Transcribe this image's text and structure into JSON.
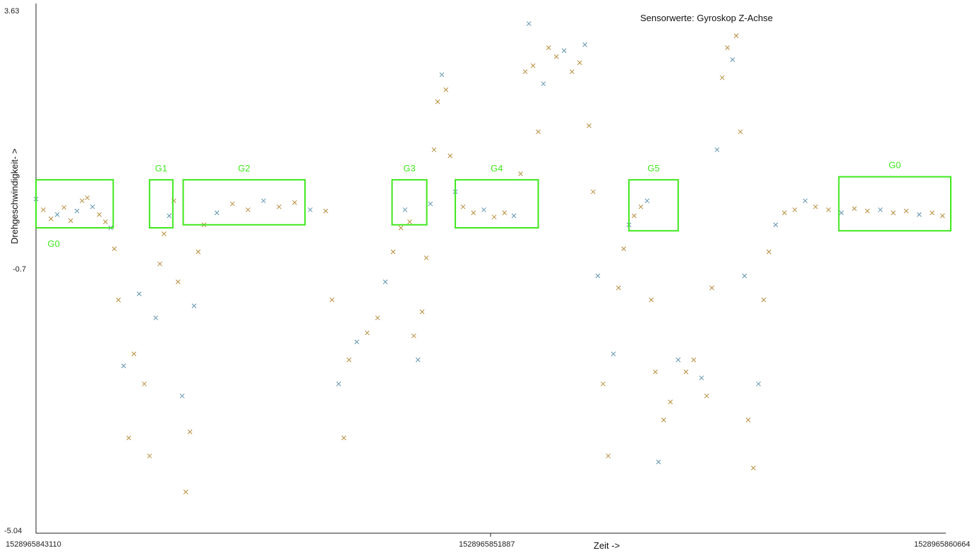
{
  "colors": {
    "box": "#3fe81c",
    "label": "#3fe81c",
    "series_primary": "#b78b3c",
    "series_secondary": "#5f93ad"
  },
  "chart_data": {
    "type": "scatter",
    "title": "Sensorwerte: Gyroskop Z-Achse",
    "xlabel": "Zeit ->",
    "ylabel": "Drehgeschwindigkeit- >",
    "xlim": [
      1528965843110,
      1528965860664
    ],
    "ylim": [
      -5.04,
      3.63
    ],
    "x_ticks": [
      "1528965843110",
      "1528965851887",
      "1528965860664"
    ],
    "y_ticks": [
      "3.63",
      "-0.7",
      "-5.04"
    ],
    "grid": false,
    "marker": "x",
    "points": [
      [
        1528965843110,
        0.48
      ],
      [
        1528965843250,
        0.3
      ],
      [
        1528965843400,
        0.15
      ],
      [
        1528965843520,
        0.22
      ],
      [
        1528965843650,
        0.34
      ],
      [
        1528965843780,
        0.12
      ],
      [
        1528965843900,
        0.28
      ],
      [
        1528965844000,
        0.45
      ],
      [
        1528965844100,
        0.5
      ],
      [
        1528965844200,
        0.35
      ],
      [
        1528965844330,
        0.22
      ],
      [
        1528965844450,
        0.1
      ],
      [
        1528965844550,
        0.0
      ],
      [
        1528965844620,
        -0.35
      ],
      [
        1528965844700,
        -1.2
      ],
      [
        1528965844800,
        -2.3
      ],
      [
        1528965844900,
        -3.5
      ],
      [
        1528965845000,
        -2.1
      ],
      [
        1528965845100,
        -1.1
      ],
      [
        1528965845200,
        -2.6
      ],
      [
        1528965845300,
        -3.8
      ],
      [
        1528965845420,
        -1.5
      ],
      [
        1528965845500,
        -0.6
      ],
      [
        1528965845580,
        -0.1
      ],
      [
        1528965845680,
        0.2
      ],
      [
        1528965845770,
        0.45
      ],
      [
        1528965845850,
        -0.9
      ],
      [
        1528965845930,
        -2.8
      ],
      [
        1528965846000,
        -4.4
      ],
      [
        1528965846080,
        -3.4
      ],
      [
        1528965846160,
        -1.3
      ],
      [
        1528965846240,
        -0.4
      ],
      [
        1528965846350,
        0.05
      ],
      [
        1528965846600,
        0.25
      ],
      [
        1528965846900,
        0.4
      ],
      [
        1528965847200,
        0.3
      ],
      [
        1528965847500,
        0.45
      ],
      [
        1528965847800,
        0.35
      ],
      [
        1528965848100,
        0.42
      ],
      [
        1528965848400,
        0.3
      ],
      [
        1528965848700,
        0.28
      ],
      [
        1528965848820,
        -1.2
      ],
      [
        1528965848950,
        -2.6
      ],
      [
        1528965849050,
        -3.5
      ],
      [
        1528965849150,
        -2.2
      ],
      [
        1528965849300,
        -1.9
      ],
      [
        1528965849500,
        -1.75
      ],
      [
        1528965849700,
        -1.5
      ],
      [
        1528965849850,
        -0.9
      ],
      [
        1528965850000,
        -0.4
      ],
      [
        1528965850150,
        0.0
      ],
      [
        1528965850230,
        0.3
      ],
      [
        1528965850320,
        0.1
      ],
      [
        1528965850400,
        -1.8
      ],
      [
        1528965850480,
        -2.2
      ],
      [
        1528965850560,
        -1.4
      ],
      [
        1528965850640,
        -0.5
      ],
      [
        1528965850720,
        0.4
      ],
      [
        1528965850790,
        1.3
      ],
      [
        1528965850860,
        2.1
      ],
      [
        1528965850940,
        2.55
      ],
      [
        1528965851020,
        2.3
      ],
      [
        1528965851100,
        1.2
      ],
      [
        1528965851200,
        0.6
      ],
      [
        1528965851350,
        0.35
      ],
      [
        1528965851550,
        0.25
      ],
      [
        1528965851750,
        0.3
      ],
      [
        1528965851950,
        0.18
      ],
      [
        1528965852150,
        0.25
      ],
      [
        1528965852330,
        0.2
      ],
      [
        1528965852460,
        0.9
      ],
      [
        1528965852550,
        2.6
      ],
      [
        1528965852620,
        3.4
      ],
      [
        1528965852700,
        2.7
      ],
      [
        1528965852800,
        1.6
      ],
      [
        1528965852900,
        2.4
      ],
      [
        1528965853000,
        3.0
      ],
      [
        1528965853150,
        2.85
      ],
      [
        1528965853300,
        2.95
      ],
      [
        1528965853450,
        2.6
      ],
      [
        1528965853600,
        2.75
      ],
      [
        1528965853700,
        3.05
      ],
      [
        1528965853780,
        1.7
      ],
      [
        1528965853860,
        0.6
      ],
      [
        1528965853950,
        -0.8
      ],
      [
        1528965854050,
        -2.6
      ],
      [
        1528965854150,
        -3.8
      ],
      [
        1528965854250,
        -2.1
      ],
      [
        1528965854350,
        -1.0
      ],
      [
        1528965854450,
        -0.35
      ],
      [
        1528965854550,
        0.05
      ],
      [
        1528965854650,
        0.2
      ],
      [
        1528965854780,
        0.35
      ],
      [
        1528965854900,
        0.45
      ],
      [
        1528965854980,
        -1.2
      ],
      [
        1528965855060,
        -2.4
      ],
      [
        1528965855120,
        -3.9
      ],
      [
        1528965855220,
        -3.2
      ],
      [
        1528965855350,
        -2.9
      ],
      [
        1528965855500,
        -2.2
      ],
      [
        1528965855650,
        -2.4
      ],
      [
        1528965855800,
        -2.2
      ],
      [
        1528965855950,
        -2.5
      ],
      [
        1528965856050,
        -2.8
      ],
      [
        1528965856150,
        -1.0
      ],
      [
        1528965856250,
        1.3
      ],
      [
        1528965856350,
        2.5
      ],
      [
        1528965856450,
        3.0
      ],
      [
        1528965856550,
        2.8
      ],
      [
        1528965856620,
        3.2
      ],
      [
        1528965856700,
        1.6
      ],
      [
        1528965856780,
        -0.8
      ],
      [
        1528965856850,
        -3.2
      ],
      [
        1528965856950,
        -4.0
      ],
      [
        1528965857050,
        -2.6
      ],
      [
        1528965857150,
        -1.2
      ],
      [
        1528965857250,
        -0.4
      ],
      [
        1528965857380,
        0.05
      ],
      [
        1528965857550,
        0.25
      ],
      [
        1528965857750,
        0.3
      ],
      [
        1528965857950,
        0.45
      ],
      [
        1528965858150,
        0.35
      ],
      [
        1528965858400,
        0.3
      ],
      [
        1528965858650,
        0.25
      ],
      [
        1528965858900,
        0.32
      ],
      [
        1528965859150,
        0.28
      ],
      [
        1528965859400,
        0.3
      ],
      [
        1528965859650,
        0.25
      ],
      [
        1528965859900,
        0.28
      ],
      [
        1528965860150,
        0.22
      ],
      [
        1528965860400,
        0.25
      ],
      [
        1528965860600,
        0.2
      ]
    ],
    "annotations": [
      {
        "label": "G0",
        "x_range": [
          1528965843110,
          1528965844600
        ],
        "y_range": [
          0.0,
          0.8
        ]
      },
      {
        "label": "G1",
        "x_range": [
          1528965845300,
          1528965845750
        ],
        "y_range": [
          0.0,
          0.8
        ]
      },
      {
        "label": "G2",
        "x_range": [
          1528965845950,
          1528965848300
        ],
        "y_range": [
          0.05,
          0.8
        ]
      },
      {
        "label": "G3",
        "x_range": [
          1528965849980,
          1528965850650
        ],
        "y_range": [
          0.05,
          0.8
        ]
      },
      {
        "label": "G4",
        "x_range": [
          1528965851200,
          1528965852800
        ],
        "y_range": [
          0.0,
          0.8
        ]
      },
      {
        "label": "G5",
        "x_range": [
          1528965854550,
          1528965855500
        ],
        "y_range": [
          -0.05,
          0.8
        ]
      },
      {
        "label": "G0",
        "x_range": [
          1528965858600,
          1528965861050
        ],
        "y_range": [
          -0.05,
          0.85
        ]
      }
    ]
  }
}
